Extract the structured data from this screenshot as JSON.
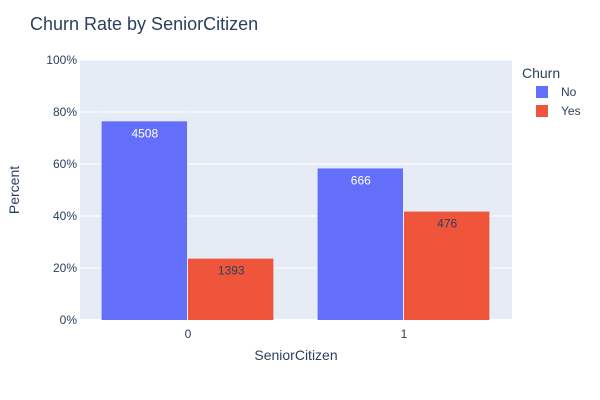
{
  "chart_data": {
    "type": "bar",
    "title": "Churn Rate by SeniorCitizen",
    "xlabel": "SeniorCitizen",
    "ylabel": "Percent",
    "categories": [
      "0",
      "1"
    ],
    "ylim": [
      0,
      100
    ],
    "yticks": [
      0,
      20,
      40,
      60,
      80,
      100
    ],
    "ytick_labels": [
      "0%",
      "20%",
      "40%",
      "60%",
      "80%",
      "100%"
    ],
    "grid": true,
    "legend": {
      "title": "Churn",
      "placement": "top-right"
    },
    "series": [
      {
        "name": "No",
        "color": "#636efa",
        "values": [
          76.4,
          58.3
        ],
        "labels": [
          "4508",
          "666"
        ],
        "label_color": "#ffffff"
      },
      {
        "name": "Yes",
        "color": "#ef553b",
        "values": [
          23.6,
          41.7
        ],
        "labels": [
          "1393",
          "476"
        ],
        "label_color": "#2a3f5f"
      }
    ]
  }
}
